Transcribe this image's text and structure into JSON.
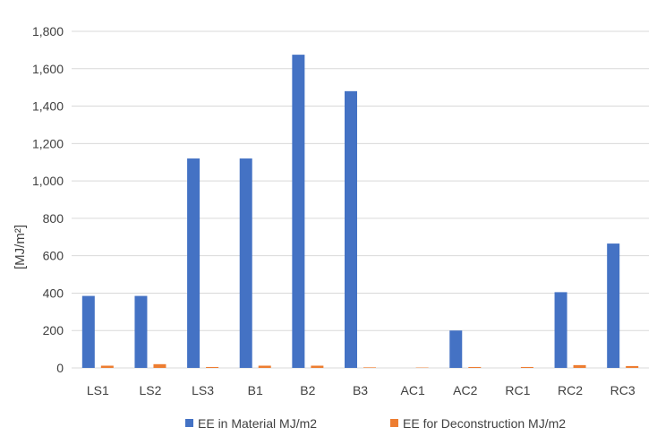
{
  "chart_data": {
    "type": "bar",
    "categories": [
      "LS1",
      "LS2",
      "LS3",
      "B1",
      "B2",
      "B3",
      "AC1",
      "AC2",
      "RC1",
      "RC2",
      "RC3"
    ],
    "series": [
      {
        "name": "EE in Material MJ/m2",
        "color": "#4472C4",
        "values": [
          385,
          385,
          1120,
          1120,
          1675,
          1480,
          0,
          200,
          0,
          405,
          665
        ]
      },
      {
        "name": "EE for Deconstruction MJ/m2",
        "color": "#ED7D31",
        "values": [
          12,
          20,
          5,
          12,
          12,
          3,
          2,
          5,
          5,
          15,
          10
        ]
      }
    ],
    "title": "",
    "xlabel": "",
    "ylabel": "[MJ/m²]",
    "ylim": [
      0,
      1800
    ],
    "yticks": [
      0,
      200,
      400,
      600,
      800,
      1000,
      1200,
      1400,
      1600,
      1800
    ],
    "ytick_labels": [
      "0",
      "200",
      "400",
      "600",
      "800",
      "1,000",
      "1,200",
      "1,400",
      "1,600",
      "1,800"
    ],
    "grid": true,
    "grid_color": "#D9D9D9",
    "legend": "bottom"
  }
}
